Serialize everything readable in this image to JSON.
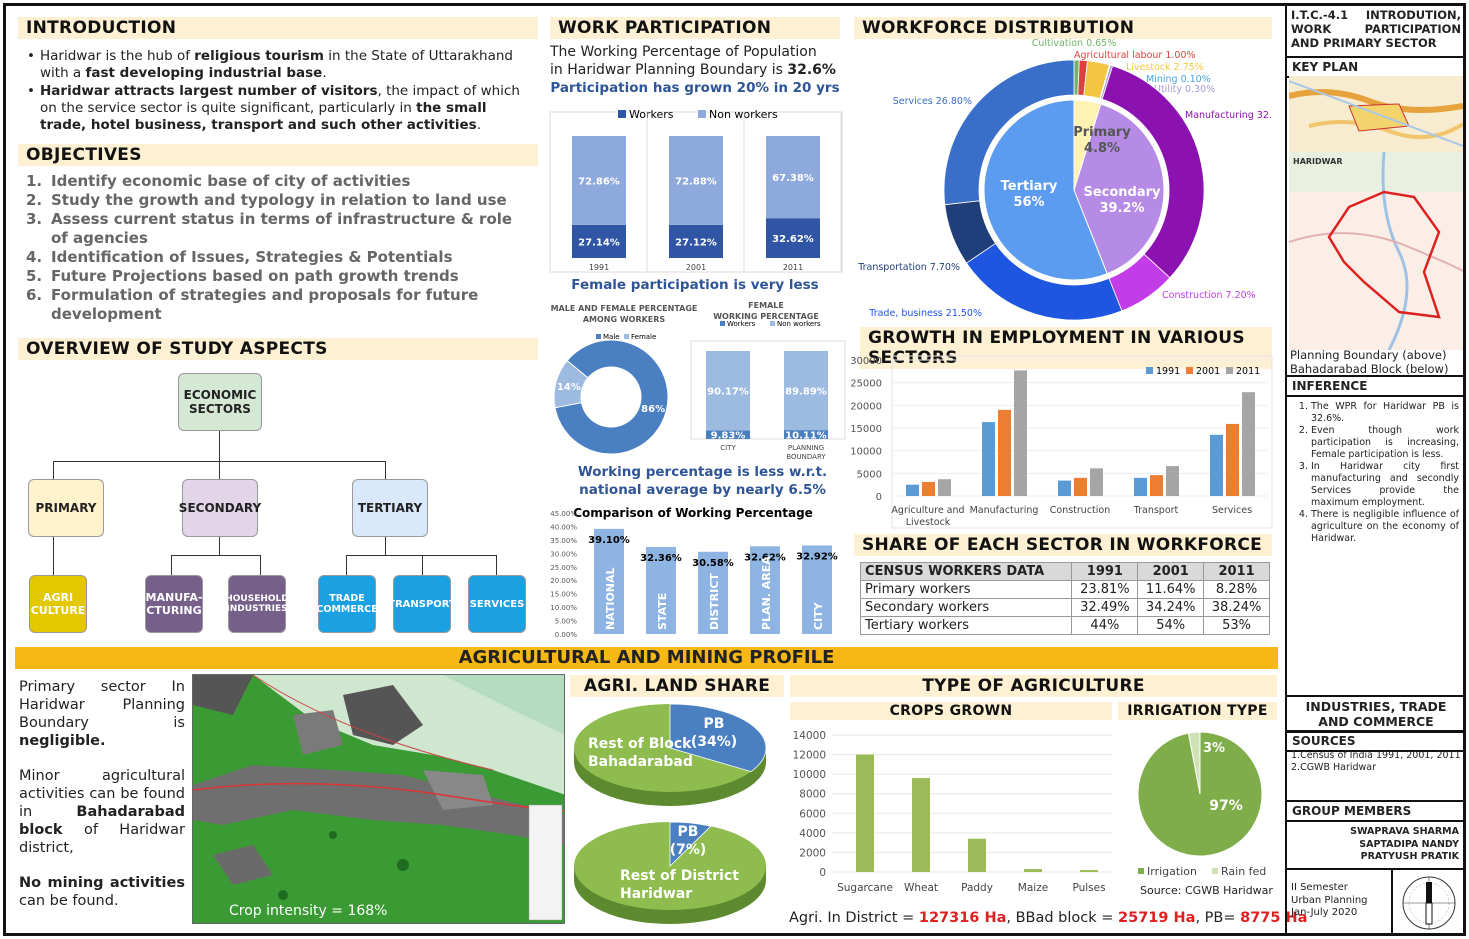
{
  "introduction": {
    "title": "INTRODUCTION",
    "b1_pre": "Haridwar is the hub of ",
    "b1_bold1": "religious tourism",
    "b1_mid": " in the State of Uttarakhand with a ",
    "b1_bold2": "fast developing industrial base",
    "b1_end": ".",
    "b2_bold1": "Haridwar attracts largest number of visitors",
    "b2_mid": ", the impact of which on the service sector is quite significant, particularly in ",
    "b2_bold2": "the small trade, hotel business, transport and such other activities",
    "b2_end": "."
  },
  "objectives": {
    "title": "OBJECTIVES",
    "items": [
      "Identify economic base of city of activities",
      "Study the growth and typology in relation to land use",
      "Assess current status in terms of infrastructure & role of agencies",
      "Identification of Issues, Strategies & Potentials",
      "Future Projections based on path growth trends",
      "Formulation of strategies and proposals for future development"
    ]
  },
  "overview": {
    "title": "OVERVIEW OF STUDY ASPECTS",
    "root": "ECONOMIC SECTORS",
    "primary": "PRIMARY",
    "secondary": "SECONDARY",
    "tertiary": "TERTIARY",
    "agri": "AGRI CULTURE",
    "manuf": "MANUFA-CTURING",
    "household": "HOUSEHOLD INDUSTRIES",
    "trade": "TRADE COMMERCE",
    "transport": "TRANSPORT",
    "services": "SERVICES",
    "colors": {
      "root": "#d5e8d4",
      "primary": "#fff2cc",
      "secondary": "#e1d5e7",
      "tertiary": "#dae8fc",
      "agri": "#e3c800",
      "manuf": "#76608a",
      "tert_child": "#1ba1e2"
    }
  },
  "work_participation": {
    "title": "WORK PARTICIPATION",
    "line1": "The Working Percentage of Population",
    "line2_pre": "in Haridwar Planning Boundary is ",
    "line2_val": "32.6%",
    "growth_note": "Participation has grown 20% in 20 yrs",
    "female_note": "Female participation is very less",
    "national_note": "Working percentage is less w.r.t. national average by nearly 6.5%"
  },
  "workforce_distribution": {
    "title": "WORKFORCE DISTRIBUTION"
  },
  "growth_employment": {
    "title": "GROWTH IN EMPLOYMENT IN VARIOUS SECTORS"
  },
  "share_sector": {
    "title": "SHARE OF EACH SECTOR IN WORKFORCE",
    "header": [
      "CENSUS WORKERS DATA",
      "1991",
      "2001",
      "2011"
    ],
    "rows": [
      [
        "Primary workers",
        "23.81%",
        "11.64%",
        "8.28%"
      ],
      [
        "Secondary workers",
        "32.49%",
        "34.24%",
        "38.24%"
      ],
      [
        "Tertiary workers",
        "44%",
        "54%",
        "53%"
      ]
    ]
  },
  "agri_profile": {
    "title": "AGRICULTURAL AND MINING PROFILE",
    "p1_pre": "Primary sector In Haridwar Planning Boundary is ",
    "p1_bold": "negligible.",
    "p2_pre": "Minor agricultural activities can be found in ",
    "p2_bold": "Bahadarabad block",
    "p2_end": " of Haridwar district,",
    "p3_bold": "No mining activities",
    "p3_end": " can be found.",
    "map_caption": "Crop intensity = 168%",
    "land_share_title": "AGRI. LAND SHARE",
    "type_title": "TYPE OF AGRICULTURE",
    "crops_title": "CROPS GROWN",
    "irrigation_title": "IRRIGATION TYPE",
    "irrigation_source": "Source: CGWB Haridwar",
    "footer_pre1": "Agri. In District = ",
    "footer_v1": "127316 Ha",
    "footer_pre2": ", BBad block = ",
    "footer_v2": "25719 Ha",
    "footer_pre3": ", PB= ",
    "footer_v3": "8775 Ha"
  },
  "sidebar": {
    "title": "I.T.C.-4.1 INTRODUTION, WORK PARTICIPATION AND PRIMARY SECTOR",
    "key_plan": "KEY PLAN",
    "map_caption1": "Planning Boundary (above)",
    "map_caption2": "Bahadarabad Block (below)",
    "inference_title": "INFERENCE",
    "inferences": [
      "The WPR for Haridwar PB is 32.6%.",
      "Even though work participation is increasing, Female participation is less.",
      "In Haridwar city first manufacturing and secondly Services provide the maximum employment.",
      "There is negligible influence of agriculture on the economy of Haridwar."
    ],
    "industries": "INDUSTRIES, TRADE AND COMMERCE",
    "sources_title": "SOURCES",
    "sources": [
      "1.Census of India 1991, 2001, 2011",
      "2.CGWB Haridwar"
    ],
    "group_title": "GROUP MEMBERS",
    "members": [
      "SWAPRAVA SHARMA",
      "SAPTADIPA NANDY",
      "PRATYUSH PRATIK"
    ],
    "semester": [
      "II Semester",
      "Urban Planning",
      "Jan-July 2020"
    ],
    "map_label_haridwar": "HARIDWAR"
  },
  "chart_data": [
    {
      "type": "bar",
      "id": "workers-stacked",
      "stacked": true,
      "categories": [
        "1991",
        "2001",
        "2011"
      ],
      "series": [
        {
          "name": "Workers",
          "values": [
            27.14,
            27.12,
            32.62
          ],
          "color": "#2f55a4"
        },
        {
          "name": "Non workers",
          "values": [
            72.86,
            72.88,
            67.38
          ],
          "color": "#8ea9db"
        }
      ]
    },
    {
      "type": "pie",
      "id": "male-female",
      "title": "MALE AND FEMALE PERCENTAGE AMONG WORKERS",
      "labels": [
        "Male",
        "Female"
      ],
      "values": [
        86,
        14
      ],
      "colors": [
        "#4a7fc1",
        "#9dbbe0"
      ]
    },
    {
      "type": "bar",
      "id": "female-working",
      "stacked": true,
      "title": "FEMALE WORKING PERCENTAGE",
      "categories": [
        "CITY",
        "PLANNING BOUNDARY"
      ],
      "series": [
        {
          "name": "Workers",
          "values": [
            9.83,
            10.11
          ],
          "color": "#4a7fc1"
        },
        {
          "name": "Non workers",
          "values": [
            90.17,
            89.89
          ],
          "color": "#9dbbe0"
        }
      ]
    },
    {
      "type": "bar",
      "id": "comparison",
      "title": "Comparison of Working Percentage",
      "categories": [
        "NATIONAL",
        "STATE",
        "DISTRICT",
        "PLAN. AREA",
        "CITY"
      ],
      "values": [
        39.1,
        32.36,
        30.58,
        32.62,
        32.92
      ],
      "ylim": [
        0,
        45
      ],
      "yticks": [
        "0.00%",
        "5.00%",
        "10.00%",
        "15.00%",
        "20.00%",
        "25.00%",
        "30.00%",
        "35.00%",
        "40.00%",
        "45.00%"
      ],
      "color": "#8eb4e3"
    },
    {
      "type": "pie",
      "id": "workforce-distribution",
      "inner": [
        {
          "label": "Tertiary",
          "value": 56,
          "color": "#5b9bf0"
        },
        {
          "label": "Secondary",
          "value": 39.2,
          "color": "#b58be6"
        },
        {
          "label": "Primary",
          "value": 4.8,
          "color": "#fff2b3"
        }
      ],
      "outer": [
        {
          "label": "Cultivation 0.65%",
          "value": 0.65,
          "color": "#71b36b"
        },
        {
          "label": "Agricultural labour 1.00%",
          "value": 1.0,
          "color": "#d9423f"
        },
        {
          "label": "Livestock 2.75%",
          "value": 2.75,
          "color": "#f4c542"
        },
        {
          "label": "Mining 0.10%",
          "value": 0.1,
          "color": "#4aa3df"
        },
        {
          "label": "Utility 0.30%",
          "value": 0.3,
          "color": "#a89ad8"
        },
        {
          "label": "Manufacturing 32.",
          "value": 32.0,
          "color": "#8b12b0"
        },
        {
          "label": "Construction 7.20%",
          "value": 7.2,
          "color": "#c23de8"
        },
        {
          "label": "Trade, business 21.50%",
          "value": 21.5,
          "color": "#1f56e0"
        },
        {
          "label": "Transportation 7.70%",
          "value": 7.7,
          "color": "#203f7a"
        },
        {
          "label": "Services 26.80%",
          "value": 26.8,
          "color": "#3a6fc9"
        }
      ]
    },
    {
      "type": "bar",
      "id": "employment-growth",
      "categories": [
        "Agriculture and Livestock",
        "Manufacturing",
        "Construction",
        "Transport",
        "Services"
      ],
      "series": [
        {
          "name": "1991",
          "values": [
            2500,
            16300,
            3400,
            4000,
            13500
          ],
          "color": "#5b9bd5"
        },
        {
          "name": "2001",
          "values": [
            3100,
            19000,
            4000,
            4600,
            15900
          ],
          "color": "#ed7d31"
        },
        {
          "name": "2011",
          "values": [
            3700,
            27700,
            6100,
            6600,
            22900
          ],
          "color": "#a5a5a5"
        }
      ],
      "ylim": [
        0,
        30000
      ],
      "yticks": [
        "0",
        "5000",
        "10000",
        "15000",
        "20000",
        "25000",
        "30000"
      ]
    },
    {
      "type": "pie",
      "id": "land-share-block",
      "labels": [
        "PB",
        "Rest of Block Bahadarabad"
      ],
      "values": [
        34,
        66
      ],
      "value_labels": [
        "(34%)",
        ""
      ],
      "colors": [
        "#4a7fc1",
        "#8fbc4f"
      ]
    },
    {
      "type": "pie",
      "id": "land-share-district",
      "labels": [
        "PB",
        "Rest of District Haridwar"
      ],
      "values": [
        7,
        93
      ],
      "value_labels": [
        "(7%)",
        ""
      ],
      "colors": [
        "#4a7fc1",
        "#8fbc4f"
      ]
    },
    {
      "type": "bar",
      "id": "crops-grown",
      "categories": [
        "Sugarcane",
        "Wheat",
        "Paddy",
        "Maize",
        "Pulses"
      ],
      "values": [
        12000,
        9600,
        3400,
        300,
        200
      ],
      "ylim": [
        0,
        14000
      ],
      "yticks": [
        "0",
        "2000",
        "4000",
        "6000",
        "8000",
        "10000",
        "12000",
        "14000"
      ],
      "color": "#9bbb59"
    },
    {
      "type": "pie",
      "id": "irrigation-type",
      "labels": [
        "Irrigation",
        "Rain fed"
      ],
      "values": [
        97,
        3
      ],
      "value_labels": [
        "97%",
        "3%"
      ],
      "colors": [
        "#7fad4a",
        "#cfe1b5"
      ]
    }
  ]
}
